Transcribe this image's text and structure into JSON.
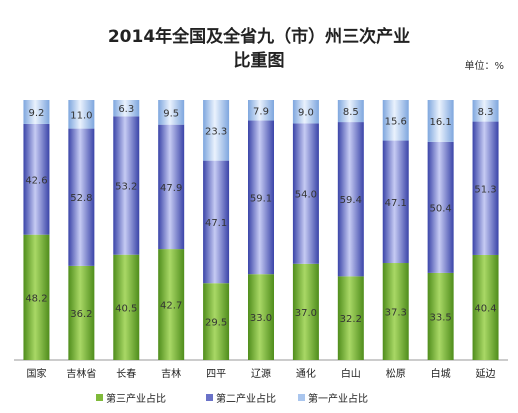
{
  "chart_data": {
    "type": "bar",
    "stacked": true,
    "normalized_percent": true,
    "title_line1": "2014年全国及全省九（市）州三次产业",
    "title_line2": "比重图",
    "unit": "单位：%",
    "categories": [
      "国家",
      "吉林省",
      "长春",
      "吉林",
      "四平",
      "辽源",
      "通化",
      "白山",
      "松原",
      "白城",
      "延边"
    ],
    "series": [
      {
        "name": "第三产业占比",
        "color": "#7fba3a",
        "values": [
          48.2,
          36.2,
          40.5,
          42.7,
          29.5,
          33.0,
          37.0,
          32.2,
          37.3,
          33.5,
          40.4
        ],
        "labels": [
          "48.2",
          "36.2",
          "40.5",
          "42.7",
          "29.5",
          "33.0",
          "37.0",
          "32.2",
          "37.3",
          "33.5",
          "40.4"
        ]
      },
      {
        "name": "第二产业占比",
        "color": "#6a72c8",
        "values": [
          42.6,
          52.8,
          53.2,
          47.9,
          47.1,
          59.1,
          54.0,
          59.4,
          47.1,
          50.4,
          51.3
        ],
        "labels": [
          "42.6",
          "52.8",
          "53.2",
          "47.9",
          "47.1",
          "59.1",
          "54.0",
          "59.4",
          "47.1",
          "50.4",
          "51.3"
        ]
      },
      {
        "name": "第一产业占比",
        "color": "#aac6ee",
        "values": [
          9.2,
          11.0,
          6.3,
          9.5,
          23.3,
          7.9,
          9.0,
          8.5,
          15.6,
          16.1,
          8.3
        ],
        "labels": [
          "9.2",
          "11.0",
          "6.3",
          "9.5",
          "23.3",
          "7.9",
          "9.0",
          "8.5",
          "15.6",
          "16.1",
          "8.3"
        ]
      }
    ],
    "ylim": [
      0,
      100
    ],
    "grid": false,
    "legend_position": "bottom"
  }
}
